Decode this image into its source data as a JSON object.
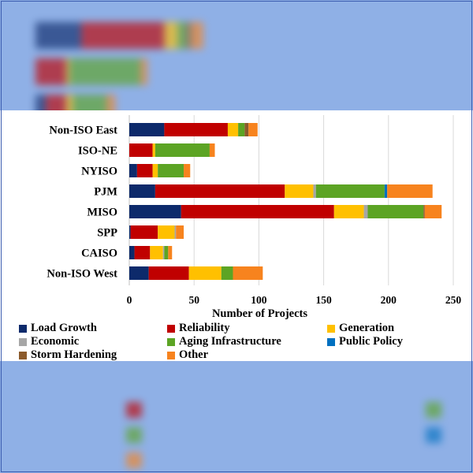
{
  "chart_data": {
    "type": "bar",
    "orientation": "horizontal",
    "stacked": true,
    "categories": [
      "Non-ISO East",
      "ISO-NE",
      "NYISO",
      "PJM",
      "MISO",
      "SPP",
      "CAISO",
      "Non-ISO West"
    ],
    "series": [
      {
        "name": "Load Growth",
        "color": "#0d2a6b",
        "values": [
          27,
          0,
          6,
          20,
          40,
          1,
          4,
          15
        ]
      },
      {
        "name": "Reliability",
        "color": "#c00000",
        "values": [
          49,
          18,
          12,
          100,
          118,
          21,
          12,
          31
        ]
      },
      {
        "name": "Generation",
        "color": "#ffc000",
        "values": [
          8,
          2,
          4,
          22,
          23,
          13,
          10,
          25
        ]
      },
      {
        "name": "Economic",
        "color": "#a6a6a6",
        "values": [
          0,
          0,
          0,
          2,
          3,
          1,
          1,
          0
        ]
      },
      {
        "name": "Aging Infrastructure",
        "color": "#5ca424",
        "values": [
          5,
          42,
          20,
          53,
          43,
          0,
          3,
          9
        ]
      },
      {
        "name": "Public Policy",
        "color": "#0070c0",
        "values": [
          0,
          0,
          0,
          2,
          0,
          0,
          0,
          0
        ]
      },
      {
        "name": "Storm Hardening",
        "color": "#8b5a2b",
        "values": [
          3,
          0,
          0,
          0,
          1,
          0,
          0,
          0
        ]
      },
      {
        "name": "Other",
        "color": "#f7831e",
        "values": [
          7,
          4,
          5,
          35,
          13,
          6,
          3,
          23
        ]
      }
    ],
    "xlabel": "Number of Projects",
    "xlim": [
      0,
      250
    ],
    "xticks": [
      0,
      50,
      100,
      150,
      200,
      250
    ],
    "grid": "vertical",
    "legend": "bottom"
  }
}
